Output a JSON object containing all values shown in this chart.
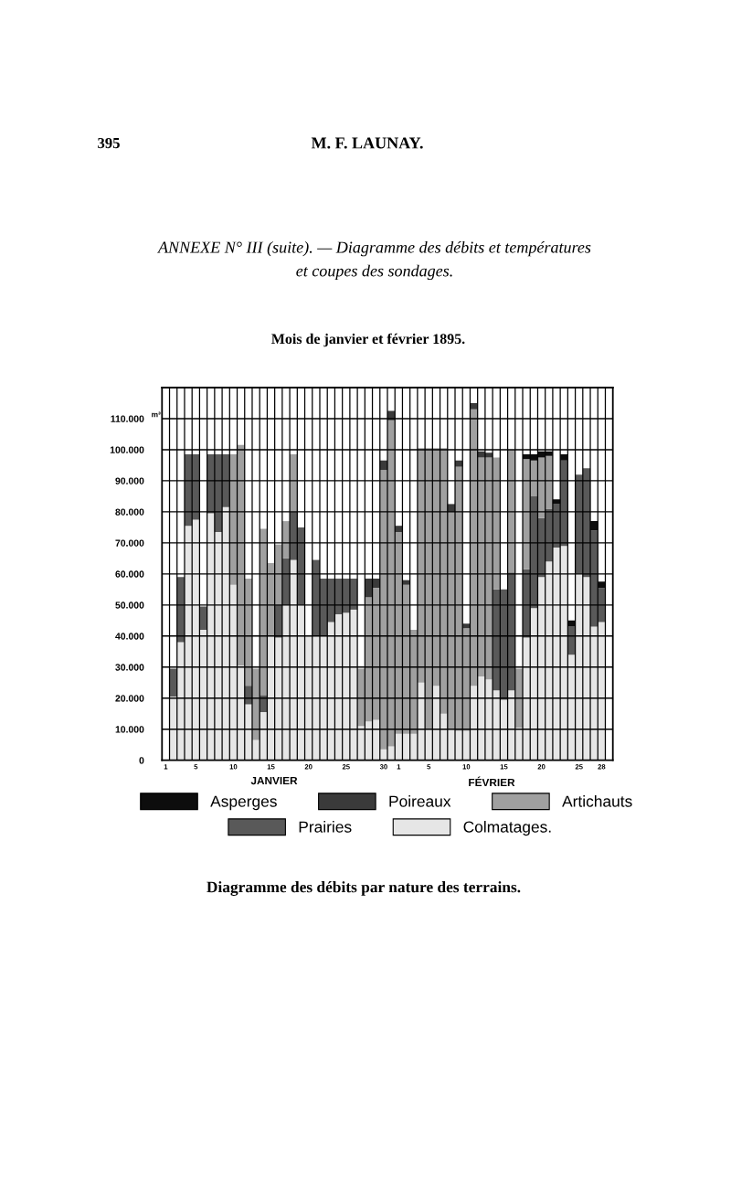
{
  "chart_data": {
    "type": "bar",
    "stacked": true,
    "title": "ANNEXE N° III (suite). — Diagramme des débits et températures\net coupes des sondages.",
    "subtitle": "Mois de janvier et février 1895.",
    "ylabel": "m³",
    "annotations": [
      "395",
      "M. F. LAUNAY.",
      "JANVIER",
      "FÉVRIER",
      "Diagramme des débits par nature des terrains."
    ],
    "categories": [
      "1",
      null,
      null,
      null,
      "5",
      null,
      null,
      null,
      null,
      "10",
      null,
      null,
      null,
      null,
      "15",
      null,
      null,
      null,
      null,
      "20",
      null,
      null,
      null,
      null,
      "25",
      null,
      null,
      null,
      null,
      "30",
      null,
      "1",
      null,
      null,
      null,
      "5",
      null,
      null,
      null,
      null,
      "10",
      null,
      null,
      null,
      null,
      "15",
      null,
      null,
      null,
      null,
      "20",
      null,
      null,
      null,
      null,
      "25",
      null,
      null,
      "28"
    ],
    "ylim": [
      0,
      120000
    ],
    "yticks": [
      0,
      {
        "value": 10000,
        "label": "10.000"
      },
      {
        "value": 20000,
        "label": "20.000"
      },
      {
        "value": 30000,
        "label": "30.000"
      },
      {
        "value": 40000,
        "label": "40.000"
      },
      {
        "value": 50000,
        "label": "50.000"
      },
      {
        "value": 60000,
        "label": "60.000"
      },
      {
        "value": 70000,
        "label": "70.000"
      },
      {
        "value": 80000,
        "label": "80.000"
      },
      {
        "value": 90000,
        "label": "90.000"
      },
      {
        "value": 100000,
        "label": "100.000"
      },
      {
        "value": 110000,
        "label": "110.000"
      }
    ],
    "grid": true,
    "legend": "bottom",
    "series": [
      {
        "name": "Colmatages.",
        "color": "#e6e6e6",
        "values": [
          null,
          20500,
          38000,
          75500,
          77500,
          42000,
          79500,
          73500,
          81500,
          56500,
          30500,
          18000,
          6500,
          15500,
          40000,
          39500,
          50000,
          64500,
          50000,
          40000,
          40000,
          40000,
          44500,
          47000,
          47500,
          48500,
          11000,
          12500,
          13000,
          3500,
          4500,
          8500,
          8500,
          8500,
          25000,
          10000,
          24000,
          15000,
          10000,
          9500,
          9500,
          24000,
          27000,
          26000,
          22500,
          19500,
          22500,
          10500,
          39500,
          49000,
          59000,
          64000,
          68500,
          69000,
          34000,
          60000,
          59000,
          43000,
          44500
        ]
      },
      {
        "name": "Prairies",
        "color": "#595959",
        "values": [
          null,
          9000,
          21000,
          23000,
          21000,
          7500,
          19000,
          25000,
          17000,
          null,
          null,
          6000,
          null,
          5500,
          null,
          10500,
          15000,
          15500,
          25000,
          null,
          24500,
          18500,
          14000,
          11500,
          11000,
          10000,
          null,
          null,
          null,
          null,
          null,
          null,
          null,
          null,
          null,
          null,
          null,
          null,
          null,
          null,
          null,
          null,
          null,
          null,
          32500,
          35500,
          38000,
          null,
          22000,
          36000,
          19000,
          17000,
          14000,
          27500,
          9000,
          32000,
          35000,
          31000,
          11000
        ]
      },
      {
        "name": "Artichauts",
        "color": "#a0a0a0",
        "values": [
          null,
          null,
          null,
          null,
          null,
          null,
          null,
          null,
          null,
          42000,
          71000,
          34500,
          23000,
          53500,
          23500,
          19500,
          12000,
          18500,
          null,
          null,
          null,
          null,
          null,
          null,
          null,
          null,
          18500,
          40000,
          42500,
          90000,
          105000,
          65000,
          48000,
          33500,
          75500,
          90500,
          76500,
          85500,
          70000,
          85000,
          33000,
          89000,
          70500,
          71500,
          42500,
          null,
          39500,
          19000,
          35500,
          11500,
          19500,
          17000,
          null,
          null,
          null,
          null,
          null,
          null,
          null
        ]
      },
      {
        "name": "Poireaux",
        "color": "#3a3a3a",
        "values": [
          null,
          null,
          null,
          null,
          null,
          null,
          null,
          null,
          null,
          null,
          null,
          null,
          null,
          null,
          null,
          null,
          null,
          null,
          null,
          null,
          null,
          null,
          null,
          null,
          null,
          null,
          null,
          6000,
          3000,
          3000,
          3000,
          2000,
          1500,
          null,
          null,
          null,
          null,
          null,
          2500,
          2000,
          1500,
          2000,
          2000,
          1500,
          null,
          null,
          null,
          null,
          null,
          null,
          null,
          null,
          null,
          null,
          null,
          null,
          null,
          null,
          null
        ]
      },
      {
        "name": "Asperges",
        "color": "#0d0d0d",
        "values": [
          null,
          null,
          null,
          null,
          null,
          null,
          null,
          null,
          null,
          null,
          null,
          null,
          null,
          null,
          null,
          null,
          null,
          null,
          null,
          null,
          null,
          null,
          null,
          null,
          null,
          null,
          null,
          null,
          null,
          null,
          null,
          null,
          null,
          null,
          null,
          null,
          null,
          null,
          null,
          null,
          null,
          null,
          null,
          null,
          null,
          null,
          null,
          null,
          1500,
          2000,
          2000,
          1500,
          1500,
          2000,
          2000,
          null,
          null,
          3000,
          2000
        ]
      }
    ]
  }
}
